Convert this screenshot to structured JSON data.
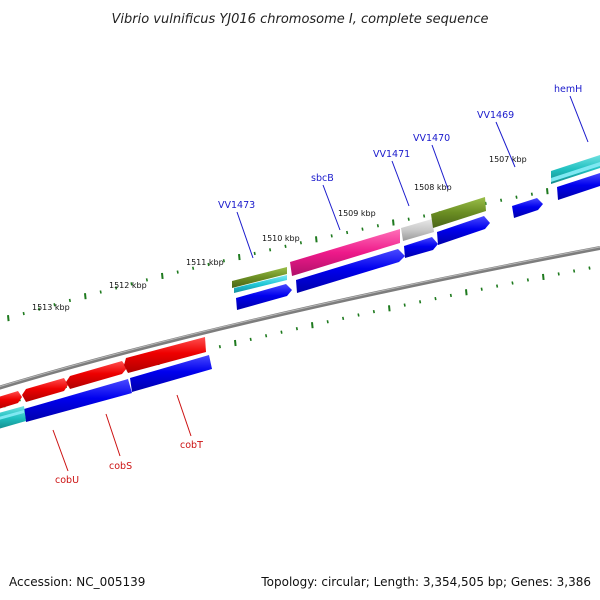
{
  "title": "Vibrio vulnificus YJ016 chromosome I, complete sequence",
  "accession": "Accession: NC_005139",
  "topology": "Topology: circular; Length: 3,354,505 bp; Genes: 3,386",
  "scale_labels": [
    "1513 kbp",
    "1512 kbp",
    "1511 kbp",
    "1510 kbp",
    "1509 kbp",
    "1508 kbp",
    "1507 kbp"
  ],
  "upper_gene_labels": [
    "VV1473",
    "sbcB",
    "VV1471",
    "VV1470",
    "VV1469",
    "hemH"
  ],
  "lower_gene_labels": [
    "cobU",
    "cobS",
    "cobT"
  ],
  "colors": {
    "backbone": "#808080",
    "tick": "#1e7a1e",
    "gene_blue": "#0000ee",
    "gene_red": "#ee0000",
    "cyan": "#22c8d8",
    "magenta": "#ee1a8a",
    "olive": "#6b8e23",
    "grey": "#c8c8c8",
    "teal": "#20c0c0"
  }
}
